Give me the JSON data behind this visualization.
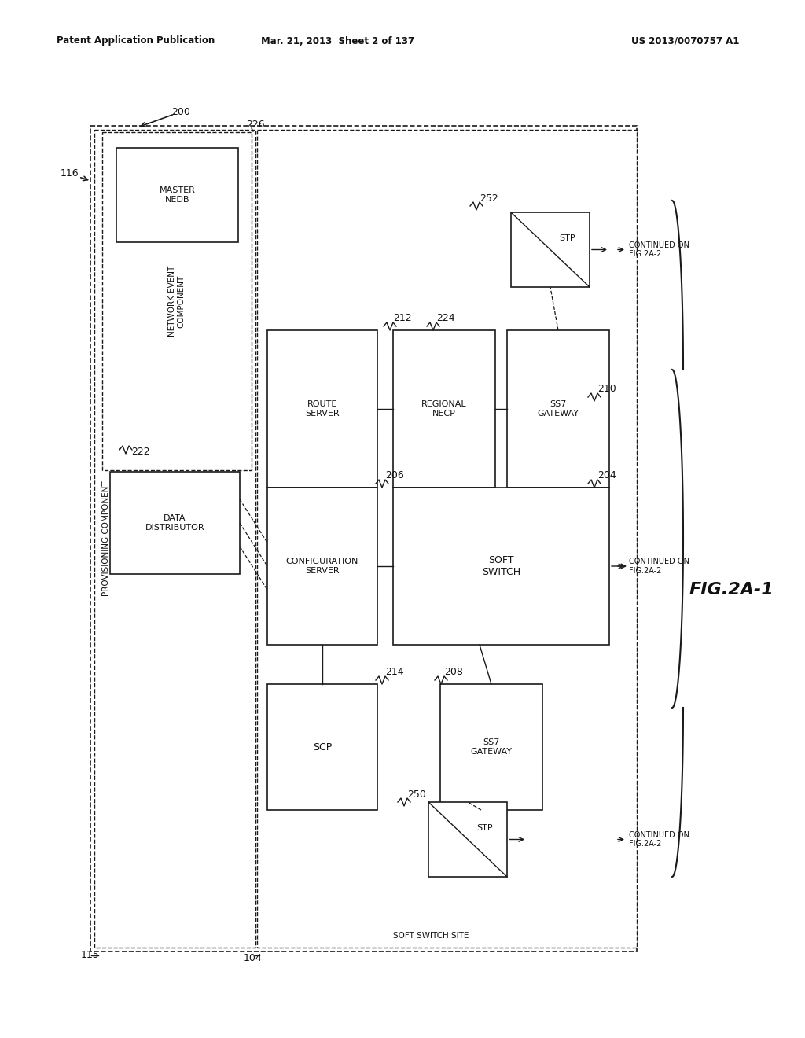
{
  "header_left": "Patent Application Publication",
  "header_mid": "Mar. 21, 2013  Sheet 2 of 137",
  "header_right": "US 2013/0070757 A1",
  "fig_label": "FIG.2A-1",
  "bg_color": "#ffffff",
  "label_200": "200",
  "label_116": "116",
  "label_115": "115",
  "label_104": "104",
  "label_226": "226",
  "label_222": "222",
  "label_212": "212",
  "label_206": "206",
  "label_214": "214",
  "label_224": "224",
  "label_210": "210",
  "label_204": "204",
  "label_208": "208",
  "label_250": "250",
  "label_252": "252",
  "text_provisioning": "PROVISIONING COMPONENT",
  "text_network_event": "NETWORK EVENT\nCOMPONENT",
  "text_master_nedb": "MASTER\nNEDB",
  "text_data_dist": "DATA\nDISTRIBUTOR",
  "text_route_server": "ROUTE\nSERVER",
  "text_config_server": "CONFIGURATION\nSERVER",
  "text_scp": "SCP",
  "text_regional_necp": "REGIONAL\nNECP",
  "text_ss7_gw_top": "SS7\nGATEWAY",
  "text_soft_switch": "SOFT\nSWITCH",
  "text_ss7_gw_bot": "SS7\nGATEWAY",
  "text_stp_top": "STP",
  "text_stp_bot": "STP",
  "text_soft_switch_site": "SOFT SWITCH SITE",
  "text_continued_1": "CONTINUED ON\nFIG.2A-2",
  "text_continued_2": "CONTINUED ON\nFIG.2A-2",
  "text_continued_3": "CONTINUED ON\nFIG.2A-2"
}
